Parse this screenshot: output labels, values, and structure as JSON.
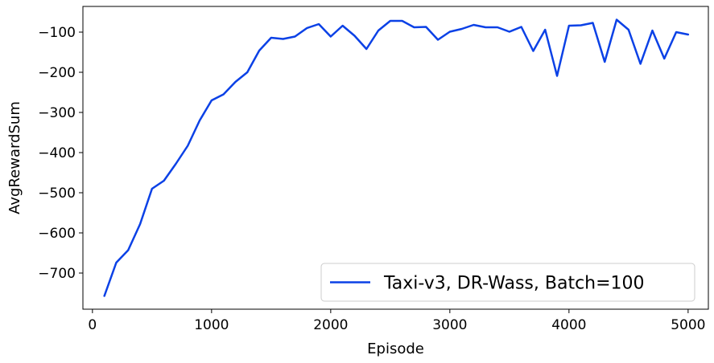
{
  "chart_data": {
    "type": "line",
    "title": "",
    "xlabel": "Episode",
    "ylabel": "AvgRewardSum",
    "xlim": [
      -80,
      5170
    ],
    "ylim": [
      -790,
      -36
    ],
    "xticks": [
      0,
      1000,
      2000,
      3000,
      4000,
      5000
    ],
    "yticks": [
      -700,
      -600,
      -500,
      -400,
      -300,
      -200,
      -100
    ],
    "xtick_labels": [
      "0",
      "1000",
      "2000",
      "3000",
      "4000",
      "5000"
    ],
    "ytick_labels": [
      "−700",
      "−600",
      "−500",
      "−400",
      "−300",
      "−200",
      "−100"
    ],
    "grid": false,
    "legend_position": "lower-right",
    "series": [
      {
        "name": "Taxi-v3, DR-Wass, Batch=100",
        "color": "#0b41e6",
        "x": [
          100,
          200,
          300,
          400,
          500,
          600,
          700,
          800,
          900,
          1000,
          1100,
          1200,
          1300,
          1400,
          1500,
          1600,
          1700,
          1800,
          1900,
          2000,
          2100,
          2200,
          2300,
          2400,
          2500,
          2600,
          2700,
          2800,
          2900,
          3000,
          3100,
          3200,
          3300,
          3400,
          3500,
          3600,
          3700,
          3800,
          3900,
          4000,
          4100,
          4200,
          4300,
          4400,
          4500,
          4600,
          4700,
          4800,
          4900,
          5000
        ],
        "y": [
          -757,
          -674,
          -643,
          -578,
          -490,
          -470,
          -428,
          -383,
          -320,
          -270,
          -255,
          -224,
          -200,
          -146,
          -114,
          -117,
          -111,
          -90,
          -80,
          -111,
          -84,
          -109,
          -142,
          -96,
          -72,
          -72,
          -88,
          -87,
          -119,
          -99,
          -92,
          -82,
          -88,
          -88,
          -99,
          -87,
          -147,
          -94,
          -209,
          -84,
          -83,
          -77,
          -174,
          -69,
          -94,
          -179,
          -96,
          -166,
          -100,
          -106
        ]
      }
    ]
  }
}
